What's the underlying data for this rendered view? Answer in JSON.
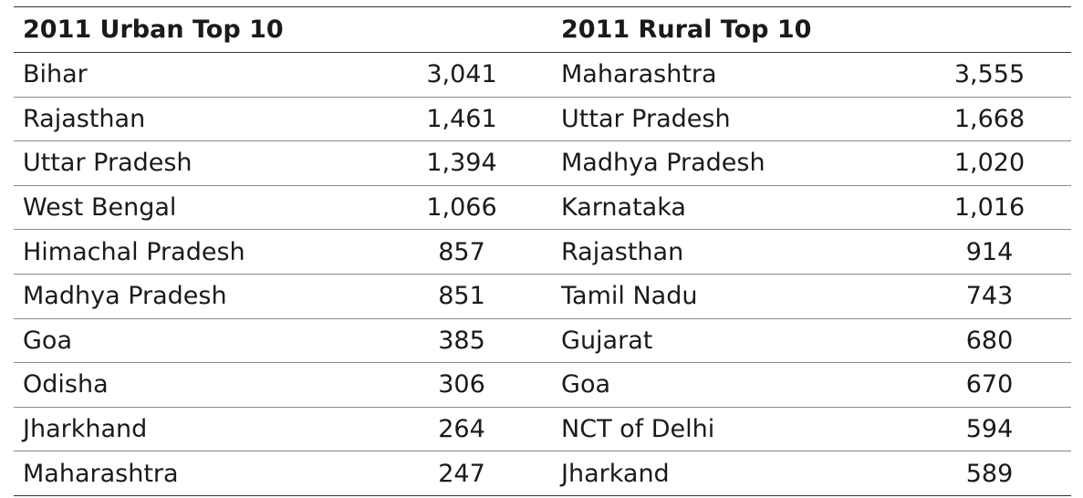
{
  "table": {
    "urban_title": "2011 Urban Top 10",
    "rural_title": "2011 Rural Top 10",
    "rows": [
      {
        "urban_state": "Bihar",
        "urban_value": "3,041",
        "rural_state": "Maharashtra",
        "rural_value": "3,555"
      },
      {
        "urban_state": "Rajasthan",
        "urban_value": "1,461",
        "rural_state": "Uttar Pradesh",
        "rural_value": "1,668"
      },
      {
        "urban_state": "Uttar Pradesh",
        "urban_value": "1,394",
        "rural_state": "Madhya Pradesh",
        "rural_value": "1,020"
      },
      {
        "urban_state": "West Bengal",
        "urban_value": "1,066",
        "rural_state": "Karnataka",
        "rural_value": "1,016"
      },
      {
        "urban_state": "Himachal Pradesh",
        "urban_value": "857",
        "rural_state": "Rajasthan",
        "rural_value": "914"
      },
      {
        "urban_state": "Madhya Pradesh",
        "urban_value": "851",
        "rural_state": "Tamil Nadu",
        "rural_value": "743"
      },
      {
        "urban_state": "Goa",
        "urban_value": "385",
        "rural_state": "Gujarat",
        "rural_value": "680"
      },
      {
        "urban_state": "Odisha",
        "urban_value": "306",
        "rural_state": "Goa",
        "rural_value": "670"
      },
      {
        "urban_state": "Jharkhand",
        "urban_value": "264",
        "rural_state": "NCT of Delhi",
        "rural_value": "594"
      },
      {
        "urban_state": "Maharashtra",
        "urban_value": "247",
        "rural_state": "Jharkand",
        "rural_value": "589"
      }
    ]
  }
}
